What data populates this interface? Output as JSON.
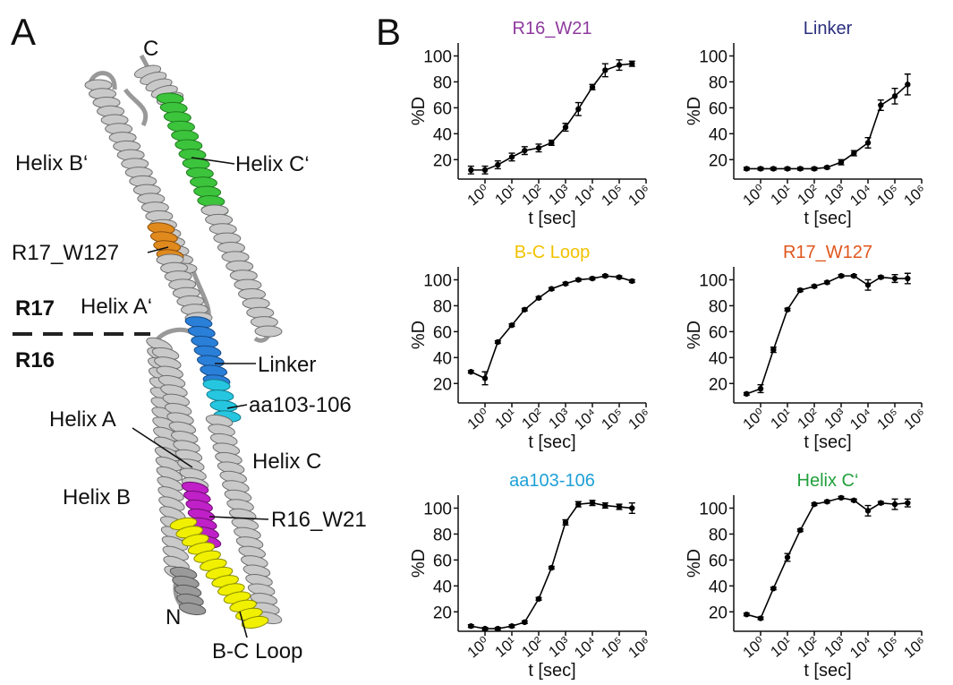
{
  "panel_labels": [
    "A",
    "B"
  ],
  "structure": {
    "labels": [
      "C",
      "Helix B‘",
      "Helix C‘",
      "R17_W127",
      "R17",
      "Helix A‘",
      "R16",
      "Linker",
      "aa103-106",
      "Helix A",
      "Helix C",
      "Helix B",
      "R16_W21",
      "N",
      "B-C Loop"
    ]
  },
  "chart_data": [
    {
      "type": "line",
      "title": "R16_W21",
      "title_color": "#8e3a9e",
      "xlabel": "t [sec]",
      "ylabel": "%D",
      "xscale": "log",
      "x": [
        0.3,
        1,
        3,
        10,
        30,
        100,
        300,
        1000,
        3000,
        10000,
        30000,
        100000,
        300000
      ],
      "series": [
        {
          "color": "#000000",
          "values": [
            12,
            12,
            16,
            22,
            27,
            29,
            33,
            45,
            59,
            76,
            89,
            93,
            94
          ],
          "errors": [
            3,
            3,
            3,
            3,
            3,
            3,
            2,
            3,
            5,
            2,
            5,
            4,
            2
          ]
        }
      ],
      "xlim": [
        0.1,
        1000000
      ],
      "xticks": [
        {
          "value": 1,
          "label": "10⁰"
        },
        {
          "value": 10,
          "label": "10¹"
        },
        {
          "value": 100,
          "label": "10²"
        },
        {
          "value": 1000,
          "label": "10³"
        },
        {
          "value": 10000,
          "label": "10⁴"
        },
        {
          "value": 100000,
          "label": "10⁵"
        },
        {
          "value": 1000000,
          "label": "10⁶"
        }
      ],
      "ylim": [
        5,
        110
      ],
      "yticks": [
        20,
        40,
        60,
        80,
        100
      ]
    },
    {
      "type": "line",
      "title": "Linker",
      "title_color": "#2b2f7f",
      "xlabel": "t [sec]",
      "ylabel": "%D",
      "xscale": "log",
      "x": [
        0.3,
        1,
        3,
        10,
        30,
        100,
        300,
        1000,
        3000,
        10000,
        30000,
        100000,
        300000
      ],
      "series": [
        {
          "color": "#000000",
          "values": [
            13,
            13,
            13,
            13,
            13,
            13,
            14,
            18,
            25,
            33,
            62,
            69,
            78
          ],
          "errors": [
            1,
            1,
            1,
            1,
            1,
            1,
            1,
            2,
            2,
            4,
            4,
            6,
            8
          ]
        }
      ],
      "xlim": [
        0.1,
        1000000
      ],
      "xticks": [
        {
          "value": 1,
          "label": "10⁰"
        },
        {
          "value": 10,
          "label": "10¹"
        },
        {
          "value": 100,
          "label": "10²"
        },
        {
          "value": 1000,
          "label": "10³"
        },
        {
          "value": 10000,
          "label": "10⁴"
        },
        {
          "value": 100000,
          "label": "10⁵"
        },
        {
          "value": 1000000,
          "label": "10⁶"
        }
      ],
      "ylim": [
        5,
        110
      ],
      "yticks": [
        20,
        40,
        60,
        80,
        100
      ]
    },
    {
      "type": "line",
      "title": "B-C Loop",
      "title_color": "#f2c200",
      "xlabel": "t [sec]",
      "ylabel": "%D",
      "xscale": "log",
      "x": [
        0.3,
        1,
        3,
        10,
        30,
        100,
        300,
        1000,
        3000,
        10000,
        30000,
        100000,
        300000
      ],
      "series": [
        {
          "color": "#000000",
          "values": [
            29,
            24,
            52,
            65,
            77,
            86,
            93,
            97,
            100,
            101,
            103,
            102,
            99
          ],
          "errors": [
            1,
            5,
            1,
            1,
            1,
            1,
            1,
            1,
            1,
            1,
            1,
            1,
            1
          ]
        }
      ],
      "xlim": [
        0.1,
        1000000
      ],
      "xticks": [
        {
          "value": 1,
          "label": "10⁰"
        },
        {
          "value": 10,
          "label": "10¹"
        },
        {
          "value": 100,
          "label": "10²"
        },
        {
          "value": 1000,
          "label": "10³"
        },
        {
          "value": 10000,
          "label": "10⁴"
        },
        {
          "value": 100000,
          "label": "10⁵"
        },
        {
          "value": 1000000,
          "label": "10⁶"
        }
      ],
      "ylim": [
        5,
        110
      ],
      "yticks": [
        20,
        40,
        60,
        80,
        100
      ]
    },
    {
      "type": "line",
      "title": "R17_W127",
      "title_color": "#e0561c",
      "xlabel": "t [sec]",
      "ylabel": "%D",
      "xscale": "log",
      "x": [
        0.3,
        1,
        3,
        10,
        30,
        100,
        300,
        1000,
        3000,
        10000,
        30000,
        100000,
        300000
      ],
      "series": [
        {
          "color": "#000000",
          "values": [
            12,
            16,
            46,
            77,
            92,
            95,
            98,
            103,
            103,
            96,
            102,
            101,
            101
          ],
          "errors": [
            1,
            3,
            2,
            1,
            1,
            1,
            1,
            1,
            1,
            4,
            1,
            3,
            4
          ]
        }
      ],
      "xlim": [
        0.1,
        1000000
      ],
      "xticks": [
        {
          "value": 1,
          "label": "10⁰"
        },
        {
          "value": 10,
          "label": "10¹"
        },
        {
          "value": 100,
          "label": "10²"
        },
        {
          "value": 1000,
          "label": "10³"
        },
        {
          "value": 10000,
          "label": "10⁴"
        },
        {
          "value": 100000,
          "label": "10⁵"
        },
        {
          "value": 1000000,
          "label": "10⁶"
        }
      ],
      "ylim": [
        5,
        110
      ],
      "yticks": [
        20,
        40,
        60,
        80,
        100
      ]
    },
    {
      "type": "line",
      "title": "aa103-106",
      "title_color": "#1ea0d8",
      "xlabel": "t [sec]",
      "ylabel": "%D",
      "xscale": "log",
      "x": [
        0.3,
        1,
        3,
        10,
        30,
        100,
        300,
        1000,
        3000,
        10000,
        30000,
        100000,
        300000
      ],
      "series": [
        {
          "color": "#000000",
          "values": [
            9,
            7,
            7,
            9,
            12,
            30,
            54,
            89,
            103,
            104,
            102,
            101,
            100
          ],
          "errors": [
            1,
            1,
            1,
            1,
            1,
            1,
            1,
            2,
            2,
            2,
            2,
            2,
            4
          ]
        }
      ],
      "xlim": [
        0.1,
        1000000
      ],
      "xticks": [
        {
          "value": 1,
          "label": "10⁰"
        },
        {
          "value": 10,
          "label": "10¹"
        },
        {
          "value": 100,
          "label": "10²"
        },
        {
          "value": 1000,
          "label": "10³"
        },
        {
          "value": 10000,
          "label": "10⁴"
        },
        {
          "value": 100000,
          "label": "10⁵"
        },
        {
          "value": 1000000,
          "label": "10⁶"
        }
      ],
      "ylim": [
        5,
        110
      ],
      "yticks": [
        20,
        40,
        60,
        80,
        100
      ]
    },
    {
      "type": "line",
      "title": "Helix C‘",
      "title_color": "#22a03c",
      "xlabel": "t [sec]",
      "ylabel": "%D",
      "xscale": "log",
      "x": [
        0.3,
        1,
        3,
        10,
        30,
        100,
        300,
        1000,
        3000,
        10000,
        30000,
        100000,
        300000
      ],
      "series": [
        {
          "color": "#000000",
          "values": [
            18,
            15,
            38,
            62,
            83,
            103,
            105,
            108,
            106,
            98,
            104,
            103,
            104
          ],
          "errors": [
            1,
            1,
            1,
            3,
            1,
            1,
            1,
            1,
            1,
            4,
            1,
            4,
            3
          ]
        }
      ],
      "xlim": [
        0.1,
        1000000
      ],
      "xticks": [
        {
          "value": 1,
          "label": "10⁰"
        },
        {
          "value": 10,
          "label": "10¹"
        },
        {
          "value": 100,
          "label": "10²"
        },
        {
          "value": 1000,
          "label": "10³"
        },
        {
          "value": 10000,
          "label": "10⁴"
        },
        {
          "value": 100000,
          "label": "10⁵"
        },
        {
          "value": 1000000,
          "label": "10⁶"
        }
      ],
      "ylim": [
        5,
        110
      ],
      "yticks": [
        20,
        40,
        60,
        80,
        100
      ]
    }
  ]
}
